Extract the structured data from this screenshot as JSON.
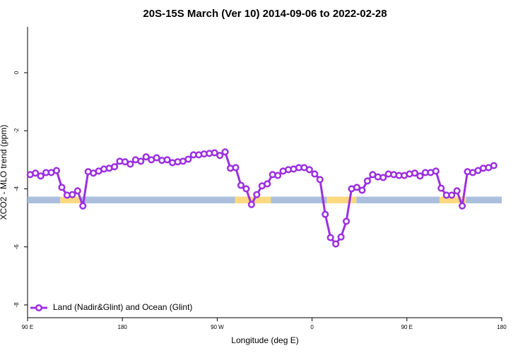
{
  "chart_data": {
    "type": "line",
    "title": "20S-15S March (Ver 10)   2014-09-06 to 2022-02-28",
    "xlabel": "Longitude (deg E)",
    "ylabel": "XCO2 - MLO trend (ppm)",
    "xlim": [
      90,
      540
    ],
    "xticks": [
      {
        "value": 90,
        "label": "90 E"
      },
      {
        "value": 180,
        "label": "180"
      },
      {
        "value": 270,
        "label": "90 W"
      },
      {
        "value": 360,
        "label": "0"
      },
      {
        "value": 450,
        "label": "90 E"
      },
      {
        "value": 540,
        "label": "180"
      }
    ],
    "ylim": [
      -8.44,
      1.58
    ],
    "yticks": [
      0,
      -2,
      -4,
      -6,
      -8
    ],
    "legend": "bottom-left",
    "x": [
      92.5,
      97.5,
      102.5,
      107.5,
      112.5,
      117.5,
      122.5,
      127.5,
      132.5,
      137.5,
      142.5,
      147.5,
      152.5,
      157.5,
      162.5,
      167.5,
      172.5,
      177.5,
      182.5,
      187.5,
      192.5,
      197.5,
      202.5,
      207.5,
      212.5,
      217.5,
      222.5,
      227.5,
      232.5,
      237.5,
      242.5,
      247.5,
      252.5,
      257.5,
      262.5,
      267.5,
      272.5,
      277.5,
      282.5,
      287.5,
      292.5,
      297.5,
      302.5,
      307.5,
      312.5,
      317.5,
      322.5,
      327.5,
      332.5,
      337.5,
      342.5,
      347.5,
      352.5,
      357.5,
      362.5,
      367.5,
      372.5,
      377.5,
      382.5,
      387.5,
      392.5,
      397.5,
      402.5,
      407.5,
      412.5,
      417.5,
      422.5,
      427.5,
      432.5,
      437.5,
      442.5,
      447.5,
      452.5,
      457.5,
      462.5,
      467.5,
      472.5,
      477.5,
      482.5,
      487.5,
      492.5,
      497.5,
      502.5,
      507.5,
      512.5,
      517.5,
      522.5,
      527.5,
      532.5
    ],
    "series": [
      {
        "name": "Land (Nadir&Glint) and Ocean (Glint)",
        "color": "#9b30e0",
        "values": [
          -3.51,
          -3.46,
          -3.56,
          -3.44,
          -3.44,
          -3.37,
          -3.95,
          -4.22,
          -4.2,
          -4.07,
          -4.59,
          -3.41,
          -3.46,
          -3.39,
          -3.32,
          -3.29,
          -3.24,
          -3.05,
          -3.07,
          -3.15,
          -3.0,
          -3.05,
          -2.9,
          -3.0,
          -2.93,
          -3.02,
          -3.0,
          -3.1,
          -3.07,
          -3.05,
          -2.98,
          -2.83,
          -2.83,
          -2.8,
          -2.78,
          -2.76,
          -2.85,
          -2.73,
          -3.29,
          -3.27,
          -3.88,
          -4.0,
          -4.54,
          -4.2,
          -3.9,
          -3.83,
          -3.51,
          -3.54,
          -3.39,
          -3.34,
          -3.32,
          -3.27,
          -3.27,
          -3.34,
          -3.49,
          -3.68,
          -4.88,
          -5.68,
          -5.9,
          -5.66,
          -5.12,
          -4.0,
          -3.95,
          -4.05,
          -3.73,
          -3.51,
          -3.59,
          -3.61,
          -3.49,
          -3.51,
          -3.54,
          -3.54,
          -3.49,
          -3.46,
          -3.56,
          -3.44,
          -3.44,
          -3.39,
          -3.98,
          -4.22,
          -4.22,
          -4.07,
          -4.59,
          -3.41,
          -3.44,
          -3.37,
          -3.29,
          -3.27,
          -3.2
        ]
      }
    ],
    "land_ocean_strip": {
      "ylim": [
        -4.5,
        -4.27
      ],
      "segments": [
        {
          "x0": 90,
          "x1": 121,
          "color": "#a9bfdd"
        },
        {
          "x0": 121,
          "x1": 141,
          "color": "#fcd97f"
        },
        {
          "x0": 141,
          "x1": 287,
          "color": "#a9bfdd"
        },
        {
          "x0": 287,
          "x1": 321,
          "color": "#fcd97f"
        },
        {
          "x0": 321,
          "x1": 374,
          "color": "#a9bfdd"
        },
        {
          "x0": 374,
          "x1": 402,
          "color": "#fcd97f"
        },
        {
          "x0": 402,
          "x1": 481,
          "color": "#a9bfdd"
        },
        {
          "x0": 481,
          "x1": 506,
          "color": "#fcd97f"
        },
        {
          "x0": 506,
          "x1": 540,
          "color": "#a9bfdd"
        }
      ]
    }
  }
}
